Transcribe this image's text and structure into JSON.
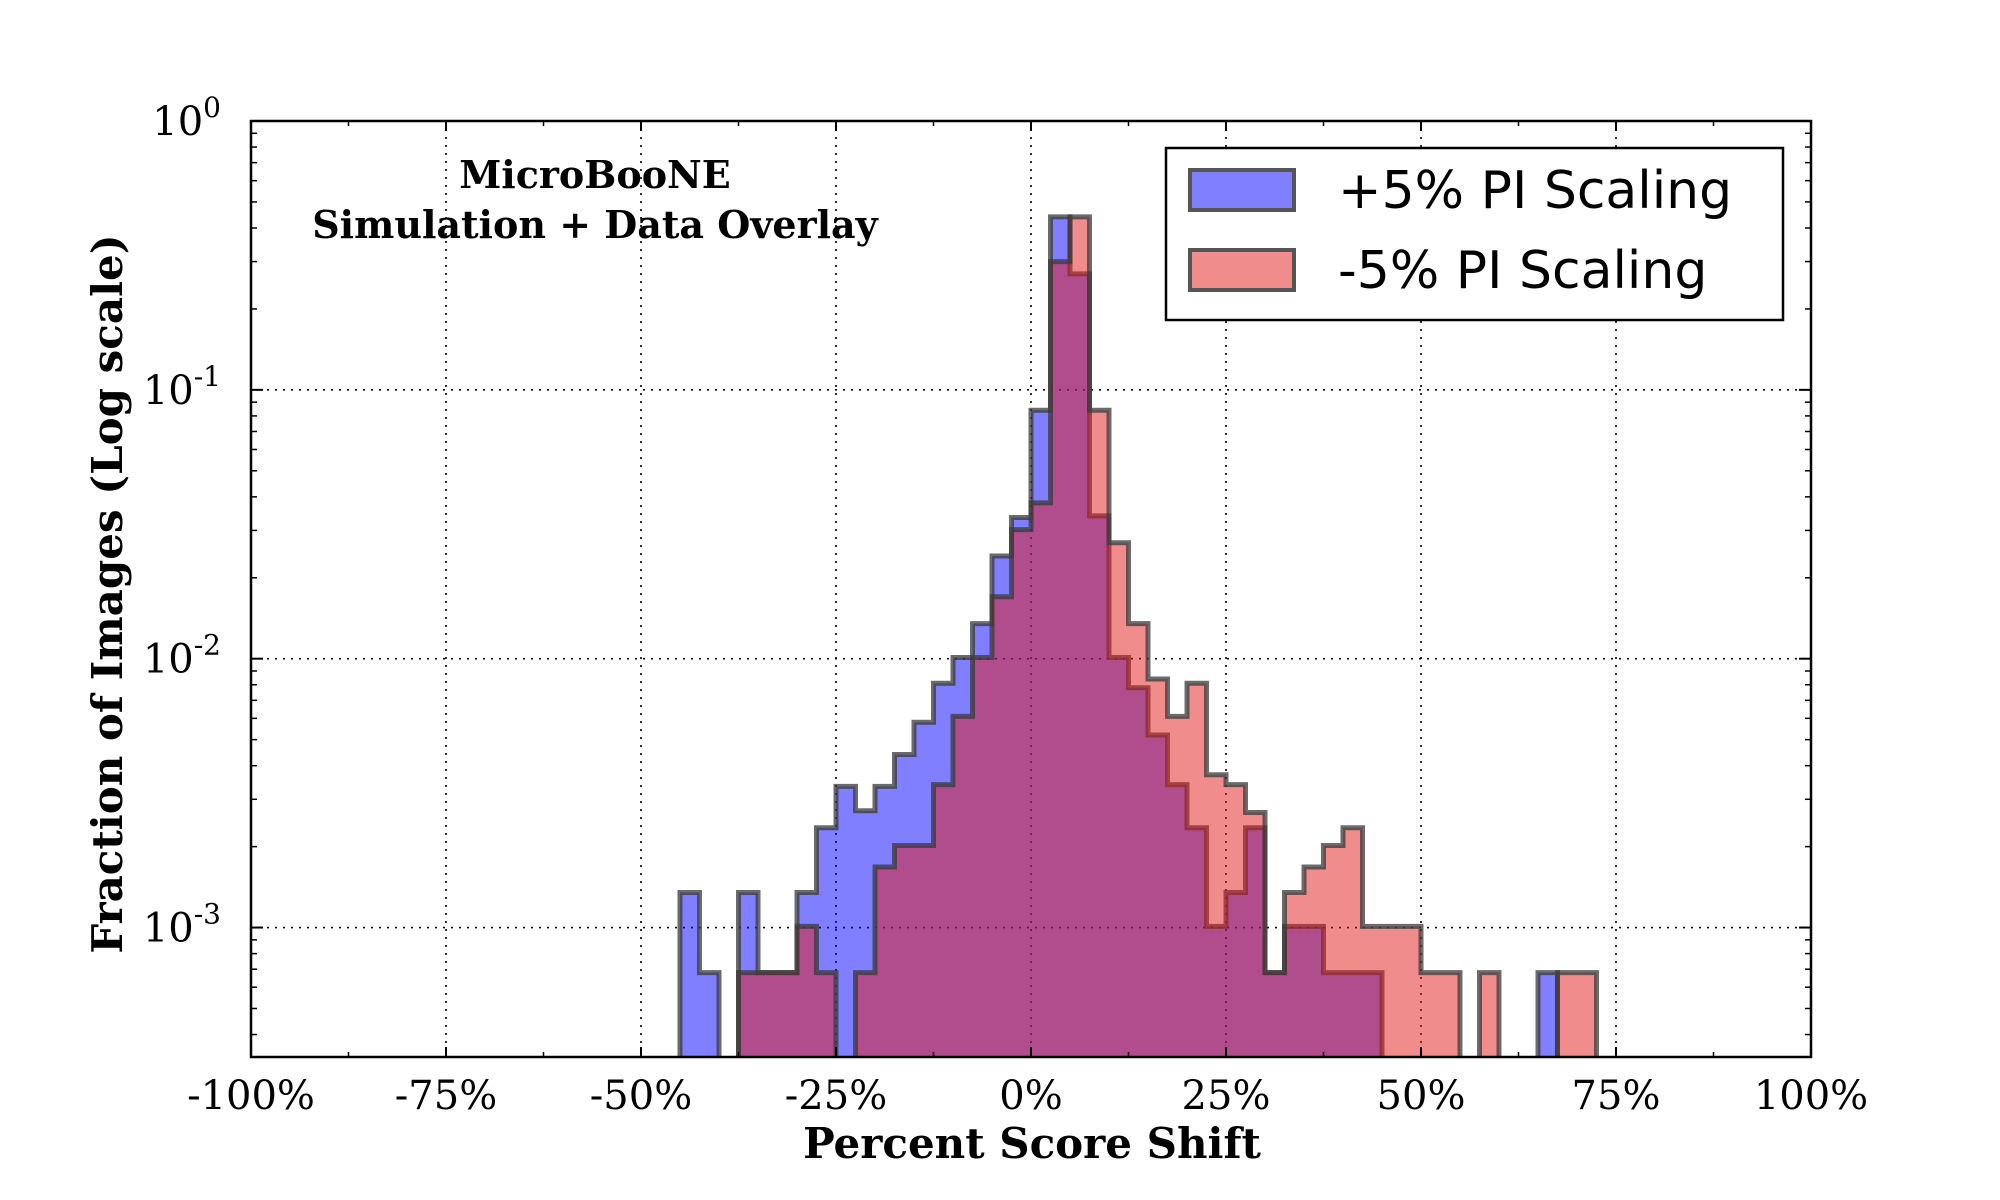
{
  "chart_data": {
    "type": "histogram",
    "title": "",
    "xlabel": "Percent Score Shift",
    "ylabel": "Fraction of Images (Log scale)",
    "xlim": [
      -100,
      100
    ],
    "ylim": [
      0.00033,
      1
    ],
    "yscale": "log",
    "grid": true,
    "legend_position": "top-right",
    "x_ticks": [
      {
        "value": -100,
        "label": "-100%"
      },
      {
        "value": -75,
        "label": "-75%"
      },
      {
        "value": -50,
        "label": "-50%"
      },
      {
        "value": -25,
        "label": "-25%"
      },
      {
        "value": 0,
        "label": "0%"
      },
      {
        "value": 25,
        "label": "25%"
      },
      {
        "value": 50,
        "label": "50%"
      },
      {
        "value": 75,
        "label": "75%"
      },
      {
        "value": 100,
        "label": "100%"
      }
    ],
    "y_ticks": [
      {
        "value": 1,
        "base": "10",
        "exp": "0"
      },
      {
        "value": 0.1,
        "base": "10",
        "exp": "-1"
      },
      {
        "value": 0.01,
        "base": "10",
        "exp": "-2"
      },
      {
        "value": 0.001,
        "base": "10",
        "exp": "-3"
      }
    ],
    "annotation": [
      "MicroBooNE",
      "Simulation + Data Overlay"
    ],
    "bin_width": 2.5,
    "series": [
      {
        "name": "+5% PI Scaling",
        "color": "#0000ff",
        "bins": [
          [
            -45,
            0.00135
          ],
          [
            -42.5,
            0.00068
          ],
          [
            -37.5,
            0.00135
          ],
          [
            -35,
            0.00068
          ],
          [
            -32.5,
            0.00068
          ],
          [
            -30,
            0.00135
          ],
          [
            -27.5,
            0.00235
          ],
          [
            -25,
            0.00335
          ],
          [
            -22.5,
            0.00272
          ],
          [
            -20,
            0.00335
          ],
          [
            -17.5,
            0.0044
          ],
          [
            -15,
            0.0058
          ],
          [
            -12.5,
            0.0081
          ],
          [
            -10,
            0.0101
          ],
          [
            -7.5,
            0.0135
          ],
          [
            -5,
            0.0241
          ],
          [
            -2.5,
            0.0335
          ],
          [
            0,
            0.084
          ],
          [
            2.5,
            0.44
          ],
          [
            5,
            0.27
          ],
          [
            7.5,
            0.034
          ],
          [
            10,
            0.0101
          ],
          [
            12.5,
            0.0078
          ],
          [
            15,
            0.0052
          ],
          [
            17.5,
            0.0034
          ],
          [
            20,
            0.00235
          ],
          [
            22.5,
            0.00101
          ],
          [
            25,
            0.00135
          ],
          [
            27.5,
            0.00235
          ],
          [
            30,
            0.00068
          ],
          [
            32.5,
            0.00101
          ],
          [
            35,
            0.00101
          ],
          [
            37.5,
            0.00068
          ],
          [
            40,
            0.00068
          ],
          [
            42.5,
            0.00068
          ],
          [
            65,
            0.00068
          ]
        ]
      },
      {
        "name": "-5% PI Scaling",
        "color": "#e41a1c",
        "bins": [
          [
            -37.5,
            0.00068
          ],
          [
            -35,
            0.00068
          ],
          [
            -32.5,
            0.00068
          ],
          [
            -30,
            0.00101
          ],
          [
            -27.5,
            0.00068
          ],
          [
            -22.5,
            0.00068
          ],
          [
            -20,
            0.00168
          ],
          [
            -17.5,
            0.00202
          ],
          [
            -15,
            0.00202
          ],
          [
            -12.5,
            0.0034
          ],
          [
            -10,
            0.0061
          ],
          [
            -7.5,
            0.0101
          ],
          [
            -5,
            0.017
          ],
          [
            -2.5,
            0.0302
          ],
          [
            0,
            0.038
          ],
          [
            2.5,
            0.3
          ],
          [
            5,
            0.44
          ],
          [
            7.5,
            0.084
          ],
          [
            10,
            0.027
          ],
          [
            12.5,
            0.0135
          ],
          [
            15,
            0.0084
          ],
          [
            17.5,
            0.0061
          ],
          [
            20,
            0.0081
          ],
          [
            22.5,
            0.0037
          ],
          [
            25,
            0.0034
          ],
          [
            27.5,
            0.00268
          ],
          [
            30,
            0.00068
          ],
          [
            32.5,
            0.00135
          ],
          [
            35,
            0.00168
          ],
          [
            37.5,
            0.00202
          ],
          [
            40,
            0.00235
          ],
          [
            42.5,
            0.00101
          ],
          [
            45,
            0.00101
          ],
          [
            47.5,
            0.00101
          ],
          [
            50,
            0.00068
          ],
          [
            52.5,
            0.00068
          ],
          [
            57.5,
            0.00068
          ],
          [
            67.5,
            0.00068
          ],
          [
            70,
            0.00068
          ]
        ]
      }
    ]
  }
}
